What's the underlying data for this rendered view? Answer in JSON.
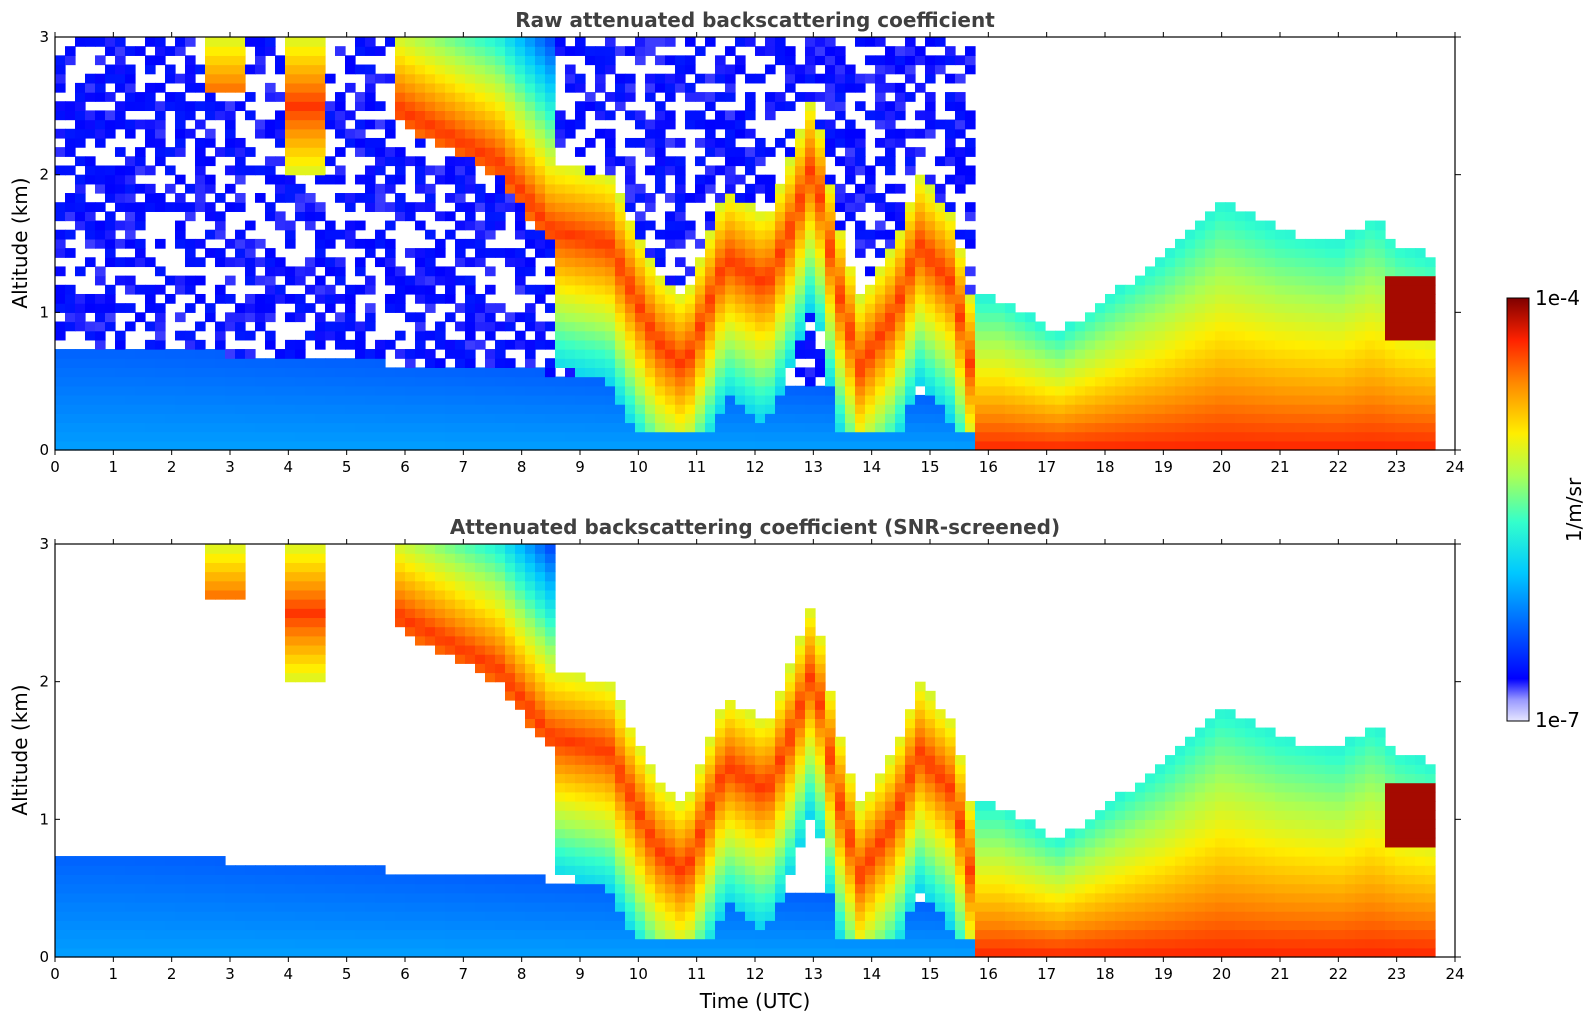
{
  "chart_data": [
    {
      "type": "heatmap",
      "title": "Raw attenuated backscattering coefficient",
      "xlabel": "",
      "ylabel": "Altitude (km)",
      "xlim": [
        0,
        24
      ],
      "ylim": [
        0,
        3
      ],
      "xticks": [
        "0",
        "1",
        "2",
        "3",
        "4",
        "5",
        "6",
        "7",
        "8",
        "9",
        "10",
        "11",
        "12",
        "13",
        "14",
        "15",
        "16",
        "17",
        "18",
        "19",
        "20",
        "21",
        "22",
        "23",
        "24"
      ],
      "yticks": [
        "0",
        "1",
        "2",
        "3"
      ],
      "screened": false,
      "data_end_time": 23.6
    },
    {
      "type": "heatmap",
      "title": "Attenuated backscattering coefficient (SNR-screened)",
      "xlabel": "Time (UTC)",
      "ylabel": "Altitude (km)",
      "xlim": [
        0,
        24
      ],
      "ylim": [
        0,
        3
      ],
      "xticks": [
        "0",
        "1",
        "2",
        "3",
        "4",
        "5",
        "6",
        "7",
        "8",
        "9",
        "10",
        "11",
        "12",
        "13",
        "14",
        "15",
        "16",
        "17",
        "18",
        "19",
        "20",
        "21",
        "22",
        "23",
        "24"
      ],
      "yticks": [
        "0",
        "1",
        "2",
        "3"
      ],
      "screened": true,
      "data_end_time": 23.6
    }
  ],
  "colorbar": {
    "label": "1/m/sr",
    "max_label": "1e-4",
    "min_label": "1e-7",
    "colormap": "jet",
    "scale": "log"
  },
  "colors": {
    "title": "#404040",
    "background": "#ffffff"
  }
}
